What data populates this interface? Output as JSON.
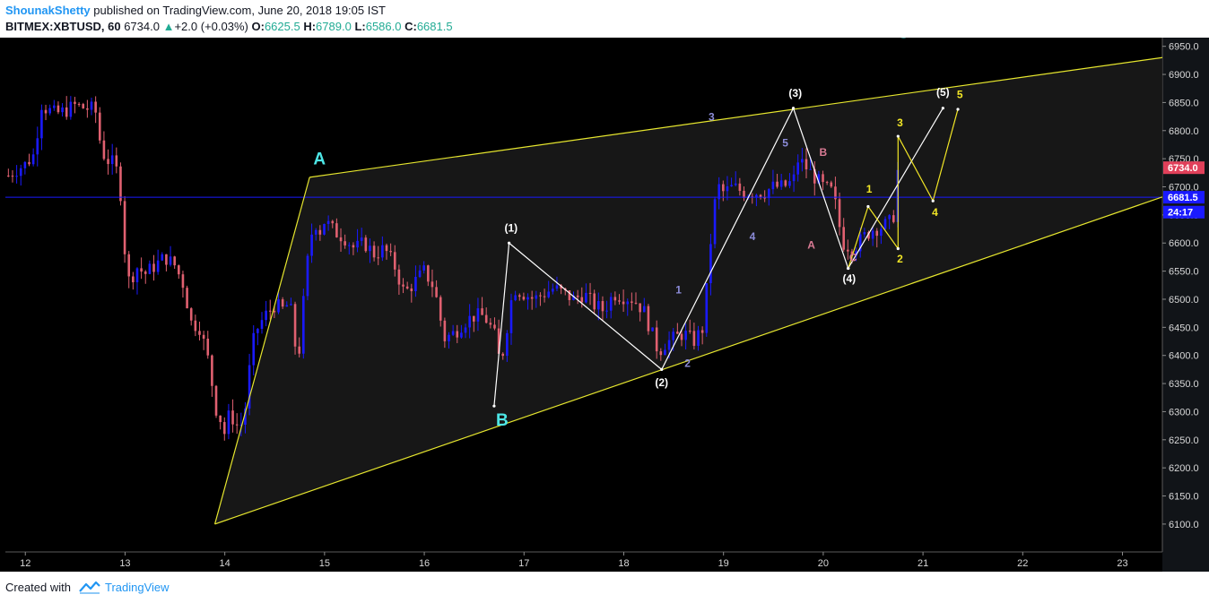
{
  "header": {
    "author": "ShounakShetty",
    "published": "published on TradingView.com, June 20, 2018 19:05 IST",
    "symbol": "BITMEX:XBTUSD, 60",
    "last": "6734.0",
    "change_arrow": "▲",
    "change": "+2.0 (+0.03%)",
    "o_label": "O:",
    "o_value": "6625.5",
    "h_label": "H:",
    "h_value": "6789.0",
    "l_label": "L:",
    "l_value": "6586.0",
    "c_label": "C:",
    "c_value": "6681.5"
  },
  "footer": {
    "created": "Created with",
    "brand": "TradingView"
  },
  "colors": {
    "background": "#000000",
    "up_candle": "#1a1aff",
    "down_candle": "#e06070",
    "channel": "#e6e62e",
    "white_wave": "#ffffff",
    "yellow_wave": "#f2e626",
    "purple_labels": "#8c8cd9",
    "pink_labels": "#d97b94",
    "cyan_labels": "#4de6e6",
    "price_tag_red": "#e0405a",
    "price_tag_blue": "#1a1aff"
  },
  "chart_data": {
    "type": "candlestick",
    "y_axis_labels": [
      "6950.0",
      "6900.0",
      "6850.0",
      "6800.0",
      "6750.0",
      "6700.0",
      "6650.0",
      "6600.0",
      "6550.0",
      "6500.0",
      "6450.0",
      "6400.0",
      "6350.0",
      "6300.0",
      "6250.0",
      "6200.0",
      "6150.0",
      "6100.0"
    ],
    "y_ticks": [
      6950,
      6900,
      6850,
      6800,
      6750,
      6700,
      6650,
      6600,
      6550,
      6500,
      6450,
      6400,
      6350,
      6300,
      6250,
      6200,
      6150,
      6100
    ],
    "ylim": [
      6060,
      6975
    ],
    "x_axis_labels": [
      "12",
      "13",
      "14",
      "15",
      "16",
      "17",
      "18",
      "19",
      "20",
      "21",
      "22",
      "23"
    ],
    "x_ticks": [
      12,
      13,
      14,
      15,
      16,
      17,
      18,
      19,
      20,
      21,
      22,
      23
    ],
    "xlim": [
      11.8,
      23.4
    ],
    "price_tags": [
      {
        "label": "6734.0",
        "y": 6734,
        "kind": "red"
      },
      {
        "label": "6681.5",
        "y": 6681.5,
        "kind": "blue"
      },
      {
        "label": "24:17",
        "y": 6655,
        "kind": "blue"
      }
    ],
    "horizontal_line": 6681.5,
    "channel_upper": [
      [
        14.85,
        6717
      ],
      [
        23.4,
        6930
      ]
    ],
    "channel_lower": [
      [
        13.9,
        6100
      ],
      [
        23.4,
        6682
      ]
    ],
    "channel_left": [
      [
        13.9,
        6100
      ],
      [
        14.85,
        6717
      ]
    ],
    "white_wave": [
      [
        16.7,
        6310
      ],
      [
        16.85,
        6600
      ],
      [
        18.38,
        6375
      ],
      [
        19.7,
        6840
      ],
      [
        20.25,
        6555
      ],
      [
        21.2,
        6840
      ]
    ],
    "yellow_wave": [
      [
        20.25,
        6555
      ],
      [
        20.45,
        6665
      ],
      [
        20.75,
        6590
      ],
      [
        20.75,
        6790
      ],
      [
        21.1,
        6675
      ],
      [
        21.35,
        6838
      ]
    ],
    "labels": [
      {
        "text": "A",
        "x": 14.95,
        "y": 6740,
        "color": "cyan"
      },
      {
        "text": "B",
        "x": 16.78,
        "y": 6275,
        "color": "cyan"
      },
      {
        "text": "C",
        "x": 20.8,
        "y": 6965,
        "color": "cyan"
      },
      {
        "text": "(1)",
        "x": 16.87,
        "y": 6620,
        "color": "white"
      },
      {
        "text": "(2)",
        "x": 18.38,
        "y": 6345,
        "color": "white"
      },
      {
        "text": "(3)",
        "x": 19.72,
        "y": 6860,
        "color": "white"
      },
      {
        "text": "(4)",
        "x": 20.26,
        "y": 6530,
        "color": "white"
      },
      {
        "text": "(5)",
        "x": 21.2,
        "y": 6862,
        "color": "white"
      },
      {
        "text": "1",
        "x": 18.55,
        "y": 6510,
        "color": "purple"
      },
      {
        "text": "2",
        "x": 18.64,
        "y": 6380,
        "color": "purple"
      },
      {
        "text": "3",
        "x": 18.88,
        "y": 6818,
        "color": "purple"
      },
      {
        "text": "4",
        "x": 19.29,
        "y": 6605,
        "color": "purple"
      },
      {
        "text": "5",
        "x": 19.62,
        "y": 6772,
        "color": "purple"
      },
      {
        "text": "A",
        "x": 19.88,
        "y": 6590,
        "color": "pink"
      },
      {
        "text": "B",
        "x": 20.0,
        "y": 6755,
        "color": "pink"
      },
      {
        "text": "C",
        "x": 20.3,
        "y": 6568,
        "color": "pink"
      },
      {
        "text": "1",
        "x": 20.46,
        "y": 6690,
        "color": "yellow"
      },
      {
        "text": "2",
        "x": 20.77,
        "y": 6565,
        "color": "yellow"
      },
      {
        "text": "3",
        "x": 20.77,
        "y": 6808,
        "color": "yellow"
      },
      {
        "text": "4",
        "x": 21.12,
        "y": 6648,
        "color": "yellow"
      },
      {
        "text": "5",
        "x": 21.37,
        "y": 6858,
        "color": "yellow"
      }
    ],
    "path": [
      [
        11.83,
        6720
      ],
      [
        11.9,
        6730
      ],
      [
        12.0,
        6740
      ],
      [
        12.1,
        6760
      ],
      [
        12.15,
        6850
      ],
      [
        12.2,
        6840
      ],
      [
        12.3,
        6830
      ],
      [
        12.4,
        6835
      ],
      [
        12.5,
        6845
      ],
      [
        12.6,
        6840
      ],
      [
        12.7,
        6838
      ],
      [
        12.75,
        6780
      ],
      [
        12.8,
        6750
      ],
      [
        12.9,
        6740
      ],
      [
        12.95,
        6700
      ],
      [
        13.0,
        6580
      ],
      [
        13.05,
        6520
      ],
      [
        13.1,
        6560
      ],
      [
        13.2,
        6545
      ],
      [
        13.3,
        6560
      ],
      [
        13.4,
        6575
      ],
      [
        13.5,
        6560
      ],
      [
        13.6,
        6520
      ],
      [
        13.65,
        6460
      ],
      [
        13.75,
        6450
      ],
      [
        13.85,
        6380
      ],
      [
        13.9,
        6310
      ],
      [
        13.95,
        6290
      ],
      [
        14.0,
        6260
      ],
      [
        14.05,
        6300
      ],
      [
        14.1,
        6280
      ],
      [
        14.15,
        6270
      ],
      [
        14.2,
        6300
      ],
      [
        14.25,
        6380
      ],
      [
        14.3,
        6440
      ],
      [
        14.4,
        6470
      ],
      [
        14.5,
        6490
      ],
      [
        14.6,
        6480
      ],
      [
        14.65,
        6500
      ],
      [
        14.7,
        6420
      ],
      [
        14.75,
        6410
      ],
      [
        14.8,
        6520
      ],
      [
        14.85,
        6600
      ],
      [
        14.9,
        6640
      ],
      [
        14.95,
        6620
      ],
      [
        15.0,
        6640
      ],
      [
        15.1,
        6620
      ],
      [
        15.2,
        6610
      ],
      [
        15.3,
        6590
      ],
      [
        15.4,
        6600
      ],
      [
        15.5,
        6580
      ],
      [
        15.6,
        6590
      ],
      [
        15.7,
        6560
      ],
      [
        15.8,
        6510
      ],
      [
        15.9,
        6530
      ],
      [
        16.0,
        6550
      ],
      [
        16.1,
        6520
      ],
      [
        16.2,
        6430
      ],
      [
        16.3,
        6440
      ],
      [
        16.4,
        6460
      ],
      [
        16.5,
        6470
      ],
      [
        16.6,
        6470
      ],
      [
        16.7,
        6440
      ],
      [
        16.75,
        6395
      ],
      [
        16.8,
        6410
      ],
      [
        16.85,
        6480
      ],
      [
        16.9,
        6520
      ],
      [
        17.0,
        6510
      ],
      [
        17.1,
        6500
      ],
      [
        17.2,
        6510
      ],
      [
        17.3,
        6520
      ],
      [
        17.4,
        6510
      ],
      [
        17.5,
        6500
      ],
      [
        17.6,
        6510
      ],
      [
        17.7,
        6490
      ],
      [
        17.8,
        6480
      ],
      [
        17.9,
        6510
      ],
      [
        18.0,
        6505
      ],
      [
        18.1,
        6500
      ],
      [
        18.2,
        6480
      ],
      [
        18.3,
        6430
      ],
      [
        18.35,
        6405
      ],
      [
        18.4,
        6420
      ],
      [
        18.5,
        6430
      ],
      [
        18.6,
        6440
      ],
      [
        18.7,
        6425
      ],
      [
        18.8,
        6450
      ],
      [
        18.85,
        6560
      ],
      [
        18.9,
        6660
      ],
      [
        18.95,
        6700
      ],
      [
        19.0,
        6690
      ],
      [
        19.1,
        6700
      ],
      [
        19.2,
        6690
      ],
      [
        19.3,
        6690
      ],
      [
        19.4,
        6690
      ],
      [
        19.5,
        6700
      ],
      [
        19.6,
        6700
      ],
      [
        19.7,
        6710
      ],
      [
        19.75,
        6750
      ],
      [
        19.8,
        6740
      ],
      [
        19.9,
        6720
      ],
      [
        20.0,
        6700
      ],
      [
        20.1,
        6690
      ],
      [
        20.15,
        6640
      ],
      [
        20.2,
        6600
      ],
      [
        20.3,
        6590
      ],
      [
        20.4,
        6610
      ],
      [
        20.5,
        6625
      ],
      [
        20.6,
        6630
      ],
      [
        20.7,
        6640
      ],
      [
        20.75,
        6734
      ]
    ]
  }
}
